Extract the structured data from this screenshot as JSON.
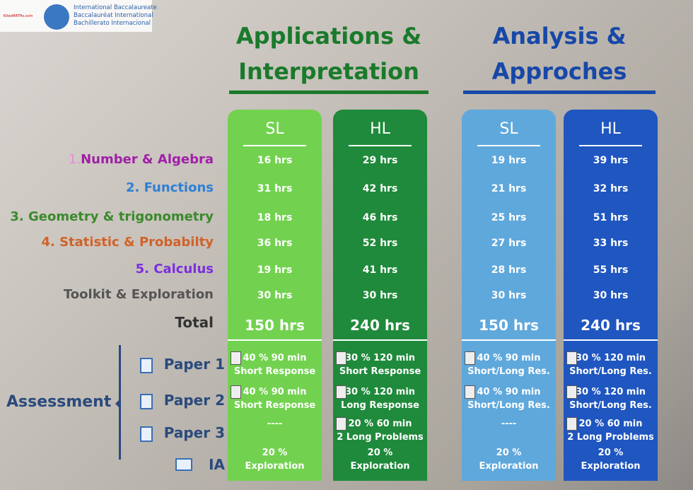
{
  "header": {
    "site": "KitesMATHs.com",
    "org": [
      "International Baccalaureate",
      "Baccalauréat International",
      "Bachillerato Internacional"
    ]
  },
  "topics": [
    {
      "num": "1.",
      "name": "Number & Algebra"
    },
    {
      "name": "2. Functions"
    },
    {
      "name": "3. Geometry & trigonometry"
    },
    {
      "name": "4. Statistic & Probabilty"
    },
    {
      "name": "5. Calculus"
    },
    {
      "name": "Toolkit & Exploration"
    },
    {
      "name": "Total"
    }
  ],
  "assessment": {
    "title": "Assessment",
    "items": [
      "Paper 1",
      "Paper 2",
      "Paper 3",
      "IA"
    ]
  },
  "courses": [
    {
      "title": [
        "Applications &",
        "Interpretation"
      ],
      "levels": [
        {
          "level": "SL",
          "hours": [
            "16 hrs",
            "31 hrs",
            "18 hrs",
            "36 hrs",
            "19 hrs",
            "30 hrs",
            "150 hrs"
          ],
          "papers": [
            [
              "40 % 90 min",
              "Short Response"
            ],
            [
              "40 % 90 min",
              "Short Response"
            ],
            [
              "----"
            ],
            [
              "20 %",
              "Exploration"
            ]
          ]
        },
        {
          "level": "HL",
          "hours": [
            "29 hrs",
            "42 hrs",
            "46 hrs",
            "52 hrs",
            "41 hrs",
            "30 hrs",
            "240 hrs"
          ],
          "papers": [
            [
              "30 % 120 min",
              "Short Response"
            ],
            [
              "30 % 120 min",
              "Long Response"
            ],
            [
              "20 % 60 min",
              "2 Long Problems"
            ],
            [
              "20 %",
              "Exploration"
            ]
          ]
        }
      ]
    },
    {
      "title": [
        "Analysis &",
        "Approches"
      ],
      "levels": [
        {
          "level": "SL",
          "hours": [
            "19 hrs",
            "21 hrs",
            "25 hrs",
            "27 hrs",
            "28 hrs",
            "30 hrs",
            "150 hrs"
          ],
          "papers": [
            [
              "40 % 90 min",
              "Short/Long Res."
            ],
            [
              "40 % 90 min",
              "Short/Long Res."
            ],
            [
              "----"
            ],
            [
              "20 %",
              "Exploration"
            ]
          ]
        },
        {
          "level": "HL",
          "hours": [
            "39 hrs",
            "32 hrs",
            "51 hrs",
            "33 hrs",
            "55 hrs",
            "30 hrs",
            "240 hrs"
          ],
          "papers": [
            [
              "30 % 120 min",
              "Short/Long Res."
            ],
            [
              "30 % 120 min",
              "Short/Long Res."
            ],
            [
              "20 % 60 min",
              "2 Long Problems"
            ],
            [
              "20 %",
              "Exploration"
            ]
          ]
        }
      ]
    }
  ]
}
